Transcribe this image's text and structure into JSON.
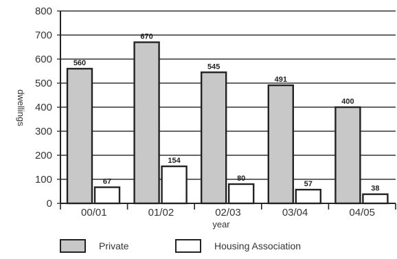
{
  "chart_data": {
    "type": "bar",
    "categories": [
      "00/01",
      "01/02",
      "02/03",
      "03/04",
      "04/05"
    ],
    "series": [
      {
        "name": "Private",
        "values": [
          560,
          670,
          545,
          491,
          400
        ],
        "color": "#c8c8c8"
      },
      {
        "name": "Housing Association",
        "values": [
          67,
          154,
          80,
          57,
          38
        ],
        "color": "#ffffff"
      }
    ],
    "xlabel": "year",
    "ylabel": "dwellings",
    "ylim": [
      0,
      800
    ],
    "yticks": [
      0,
      100,
      200,
      300,
      400,
      500,
      600,
      700,
      800
    ],
    "grid": true,
    "legend_position": "bottom",
    "bar_stroke": "#222222"
  }
}
